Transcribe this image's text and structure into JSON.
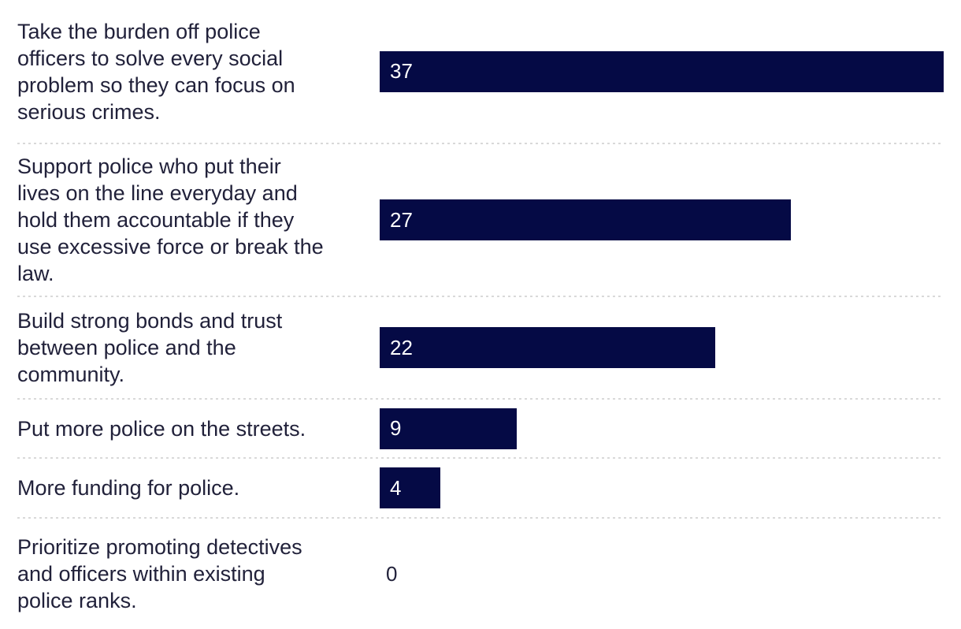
{
  "rows": [
    {
      "label": "Take the burden off police\nofficers to solve every social\nproblem so they can focus on\nserious crimes.",
      "value": 37
    },
    {
      "label": "Support police who put their\nlives on the line everyday and\nhold them accountable if they\nuse excessive force or break the\nlaw.",
      "value": 27
    },
    {
      "label": "Build strong bonds and trust\nbetween police and the\ncommunity.",
      "value": 22
    },
    {
      "label": "Put more police on the streets.",
      "value": 9
    },
    {
      "label": "More funding for police.",
      "value": 4
    },
    {
      "label": "Prioritize promoting detectives\nand officers within existing\npolice ranks.",
      "value": 0
    }
  ],
  "chart_data": {
    "type": "bar",
    "orientation": "horizontal",
    "title": "",
    "categories": [
      "Take the burden off police officers to solve every social problem so they can focus on serious crimes.",
      "Support police who put their lives on the line everyday and hold them accountable if they use excessive force or break the law.",
      "Build strong bonds and trust between police and the community.",
      "Put more police on the streets.",
      "More funding for police.",
      "Prioritize promoting detectives and officers within existing police ranks."
    ],
    "values": [
      37,
      27,
      22,
      9,
      4,
      0
    ],
    "max": 37,
    "xlim": [
      0,
      37
    ],
    "grid": false,
    "legend": "none",
    "value_label_position": "inside-start",
    "bar_color": "#050a45",
    "label_color": "#21213a",
    "value_label_color": "#ffffff",
    "zero_value_label_color": "#21213a",
    "separator_color": "#d9d9d9",
    "background_color": "#ffffff"
  }
}
